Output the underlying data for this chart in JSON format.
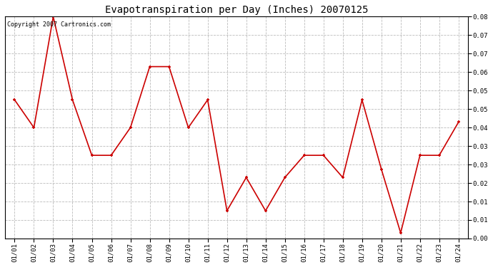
{
  "title": "Evapotranspiration per Day (Inches) 20070125",
  "copyright_text": "Copyright 2007 Cartronics.com",
  "x_labels": [
    "01/01",
    "01/02",
    "01/03",
    "01/04",
    "01/05",
    "01/06",
    "01/07",
    "01/08",
    "01/09",
    "01/10",
    "01/11",
    "01/12",
    "01/13",
    "01/14",
    "01/15",
    "01/16",
    "01/17",
    "01/18",
    "01/19",
    "01/20",
    "01/21",
    "01/22",
    "01/23",
    "01/24"
  ],
  "y_values": [
    0.05,
    0.04,
    0.08,
    0.05,
    0.03,
    0.03,
    0.04,
    0.062,
    0.062,
    0.04,
    0.05,
    0.01,
    0.022,
    0.01,
    0.022,
    0.03,
    0.03,
    0.022,
    0.05,
    0.025,
    0.002,
    0.03,
    0.03,
    0.042
  ],
  "line_color": "#cc0000",
  "marker_color": "#cc0000",
  "marker_size": 3,
  "line_width": 1.2,
  "ylim": [
    0.0,
    0.08
  ],
  "ytick_positions": [
    0.0,
    0.00667,
    0.01333,
    0.02,
    0.02667,
    0.03333,
    0.04,
    0.04667,
    0.05333,
    0.06,
    0.06667,
    0.07333,
    0.08
  ],
  "ytick_labels": [
    "0.00",
    "0.01",
    "0.01",
    "0.02",
    "0.03",
    "0.03",
    "0.04",
    "0.05",
    "0.05",
    "0.06",
    "0.07",
    "0.07",
    "0.08"
  ],
  "background_color": "#ffffff",
  "grid_color": "#bbbbbb",
  "title_fontsize": 10,
  "tick_fontsize": 6.5,
  "copyright_fontsize": 6
}
